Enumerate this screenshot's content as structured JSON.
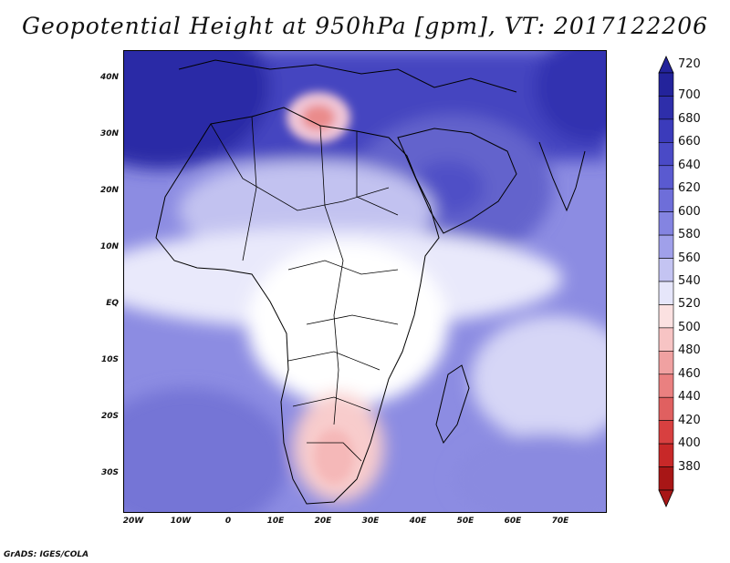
{
  "title": "Geopotential Height at 950hPa [gpm], VT: 2017122206",
  "credit": "GrADS: IGES/COLA",
  "lat_labels": [
    "40N",
    "30N",
    "20N",
    "10N",
    "EQ",
    "10S",
    "20S",
    "30S"
  ],
  "lon_labels": [
    "20W",
    "10W",
    "0",
    "10E",
    "20E",
    "30E",
    "40E",
    "50E",
    "60E",
    "70E"
  ],
  "colorbar": {
    "levels": [
      "720",
      "700",
      "680",
      "660",
      "640",
      "620",
      "600",
      "580",
      "560",
      "540",
      "520",
      "500",
      "480",
      "460",
      "440",
      "420",
      "400",
      "380"
    ],
    "colors": [
      "#23239b",
      "#2e2eaa",
      "#3b3bbb",
      "#4a4ac6",
      "#5a5ad0",
      "#6e6ed9",
      "#8484e1",
      "#a0a0ea",
      "#c4c4f2",
      "#e6e6fa",
      "#fbe1e1",
      "#f7c4c4",
      "#f0a1a1",
      "#ea8080",
      "#e06060",
      "#d84040",
      "#c82828",
      "#a81616"
    ]
  },
  "map": {
    "background_color": "#8a8ae2",
    "region_color": "#ffffff",
    "region_label": "Africa and Middle East"
  }
}
